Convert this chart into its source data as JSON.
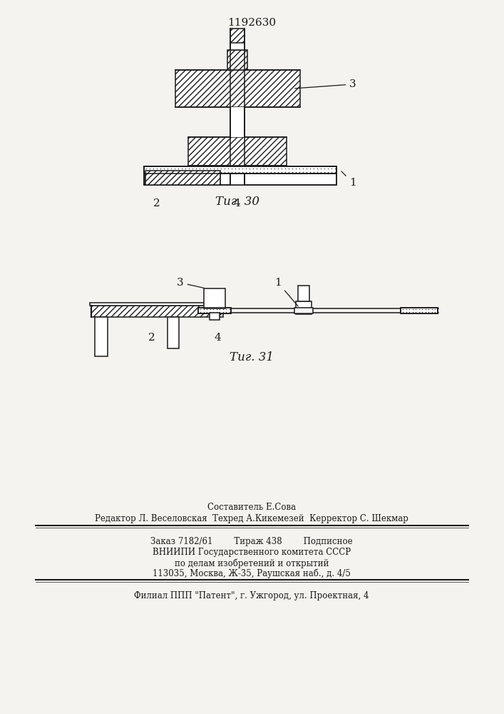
{
  "patent_number": "1192630",
  "fig30_caption": "Τиг. 30",
  "fig31_caption": "Τиг. 31",
  "footer_line1": "Составитель Е.Сова",
  "footer_line2": "Редактор Л. Веселовская  Техред А.Кикемезей  Керректор С. Шекмар",
  "footer_line3": "Заказ 7182/61        Тираж 438        Подписное",
  "footer_line4": "ВНИИПИ Государственного комитета СССР",
  "footer_line5": "по делам изобретений и открытий",
  "footer_line6": "113035, Москва, Ж-35, Раушская наб., д. 4/5",
  "footer_line7": "Филиал ППП \"Патент\", г. Ужгород, ул. Проектная, 4",
  "bg_color": "#f5f3ef",
  "line_color": "#1a1a1a"
}
